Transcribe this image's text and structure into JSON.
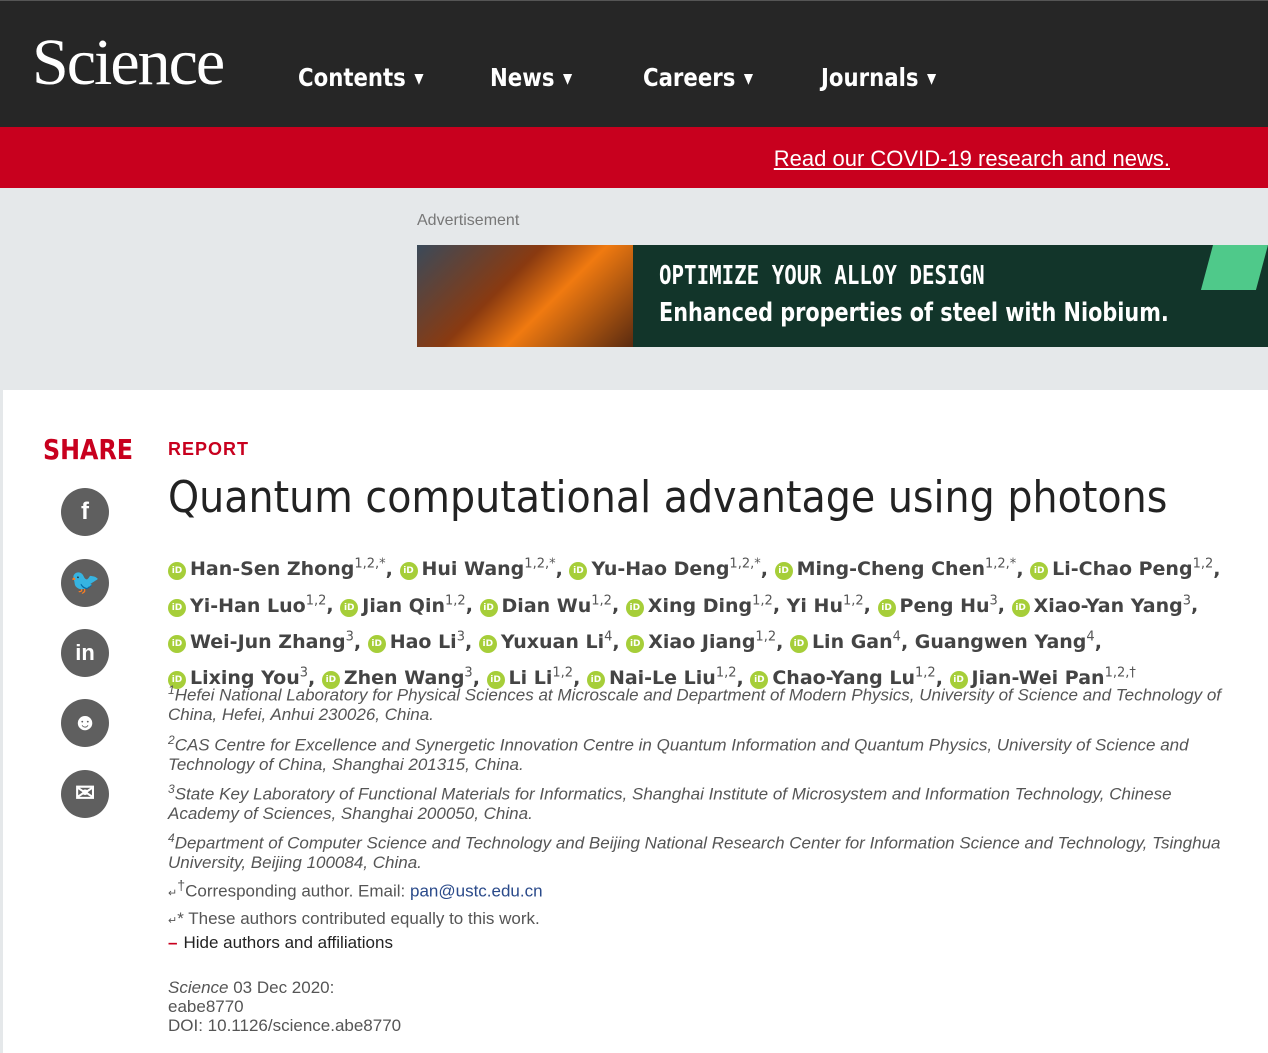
{
  "header": {
    "logo": "Science",
    "nav": [
      {
        "label": "Contents"
      },
      {
        "label": "News"
      },
      {
        "label": "Careers"
      },
      {
        "label": "Journals"
      }
    ]
  },
  "banner": {
    "link": "Read our COVID-19 research and news."
  },
  "ad": {
    "label": "Advertisement",
    "line1": "OPTIMIZE YOUR ALLOY DESIGN",
    "line2": "Enhanced properties of steel with Niobium."
  },
  "share": {
    "label": "SHARE",
    "items": [
      "facebook",
      "twitter",
      "linkedin",
      "reddit",
      "email"
    ]
  },
  "article": {
    "kicker": "REPORT",
    "title": "Quantum computational advantage using photons",
    "authors": [
      {
        "name": "Han-Sen Zhong",
        "sup": "1,2,*",
        "orcid": true
      },
      {
        "name": "Hui Wang",
        "sup": "1,2,*",
        "orcid": true
      },
      {
        "name": "Yu-Hao Deng",
        "sup": "1,2,*",
        "orcid": true
      },
      {
        "name": "Ming-Cheng Chen",
        "sup": "1,2,*",
        "orcid": true
      },
      {
        "name": "Li-Chao Peng",
        "sup": "1,2",
        "orcid": true
      },
      {
        "name": "Yi-Han Luo",
        "sup": "1,2",
        "orcid": true
      },
      {
        "name": "Jian Qin",
        "sup": "1,2",
        "orcid": true
      },
      {
        "name": "Dian Wu",
        "sup": "1,2",
        "orcid": true
      },
      {
        "name": "Xing Ding",
        "sup": "1,2",
        "orcid": true
      },
      {
        "name": "Yi Hu",
        "sup": "1,2",
        "orcid": false
      },
      {
        "name": "Peng Hu",
        "sup": "3",
        "orcid": true
      },
      {
        "name": "Xiao-Yan Yang",
        "sup": "3",
        "orcid": true
      },
      {
        "name": "Wei-Jun Zhang",
        "sup": "3",
        "orcid": true
      },
      {
        "name": "Hao Li",
        "sup": "3",
        "orcid": true
      },
      {
        "name": "Yuxuan Li",
        "sup": "4",
        "orcid": true
      },
      {
        "name": "Xiao Jiang",
        "sup": "1,2",
        "orcid": true
      },
      {
        "name": "Lin Gan",
        "sup": "4",
        "orcid": true
      },
      {
        "name": "Guangwen Yang",
        "sup": "4",
        "orcid": false
      },
      {
        "name": "Lixing You",
        "sup": "3",
        "orcid": true
      },
      {
        "name": "Zhen Wang",
        "sup": "3",
        "orcid": true
      },
      {
        "name": "Li Li",
        "sup": "1,2",
        "orcid": true
      },
      {
        "name": "Nai-Le Liu",
        "sup": "1,2",
        "orcid": true
      },
      {
        "name": "Chao-Yang Lu",
        "sup": "1,2",
        "orcid": true
      },
      {
        "name": "Jian-Wei Pan",
        "sup": "1,2,†",
        "orcid": true
      }
    ],
    "affiliations": [
      {
        "num": "1",
        "text": "Hefei National Laboratory for Physical Sciences at Microscale and Department of Modern Physics, University of Science and Technology of China, Hefei, Anhui 230026, China."
      },
      {
        "num": "2",
        "text": "CAS Centre for Excellence and Synergetic Innovation Centre in Quantum Information and Quantum Physics, University of Science and Technology of China, Shanghai 201315, China."
      },
      {
        "num": "3",
        "text": "State Key Laboratory of Functional Materials for Informatics, Shanghai Institute of Microsystem and Information Technology, Chinese Academy of Sciences, Shanghai 200050, China."
      },
      {
        "num": "4",
        "text": "Department of Computer Science and Technology and Beijing National Research Center for Information Science and Technology, Tsinghua University, Beijing 100084, China."
      }
    ],
    "corresponding": {
      "mark": "†",
      "text": "Corresponding author. Email: ",
      "email": "pan@ustc.edu.cn"
    },
    "equal": "* These authors contributed equally to this work.",
    "hide": "Hide authors and affiliations",
    "citation": {
      "journal": "Science",
      "date": " 03 Dec 2020:",
      "id": "eabe8770",
      "doi": "DOI: 10.1126/science.abe8770"
    }
  }
}
